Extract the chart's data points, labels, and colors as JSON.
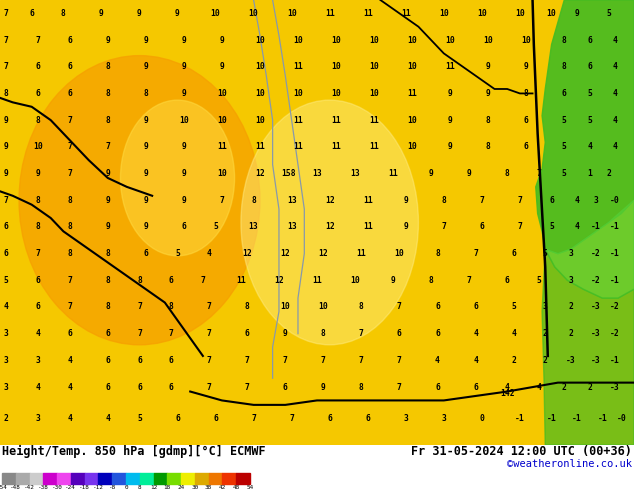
{
  "title_left": "Height/Temp. 850 hPa [gdmp][°C] ECMWF",
  "title_right": "Fr 31-05-2024 12:00 UTC (00+36)",
  "copyright": "©weatheronline.co.uk",
  "colorbar_labels": [
    "-54",
    "-48",
    "-42",
    "-38",
    "-30",
    "-24",
    "-18",
    "-12",
    "-8",
    "0",
    "8",
    "12",
    "18",
    "24",
    "30",
    "38",
    "42",
    "48",
    "54"
  ],
  "colorbar_colors": [
    "#888888",
    "#aaaaaa",
    "#cccccc",
    "#cc00cc",
    "#ee44ee",
    "#5500bb",
    "#7733ee",
    "#0000bb",
    "#2255dd",
    "#00bbee",
    "#00ee99",
    "#009900",
    "#77dd00",
    "#eeee00",
    "#ddaa00",
    "#ee7700",
    "#ee3300",
    "#bb0000"
  ],
  "map_bg_yellow": "#f5c800",
  "map_bg_orange": "#f5a000",
  "map_bg_lightyellow": "#ffe060",
  "green_color": "#44bb22",
  "green_color2": "#55cc33",
  "black_contour_color": "#000000",
  "gray_contour_color": "#8899aa"
}
